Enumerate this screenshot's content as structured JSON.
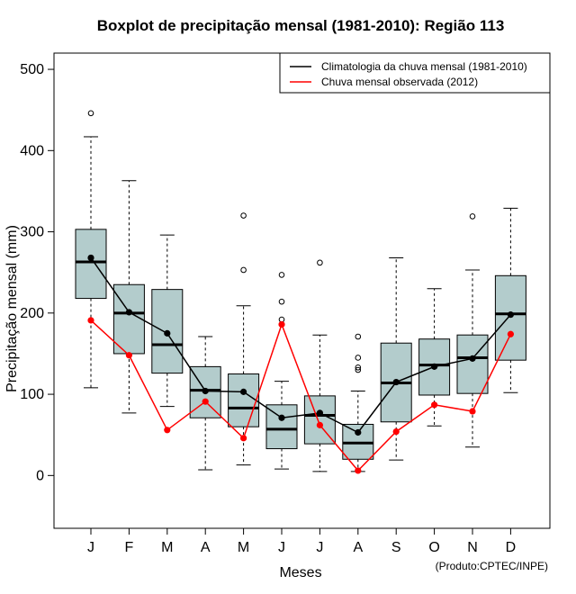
{
  "chart_data": {
    "type": "boxplot",
    "title": "Boxplot de precipitação mensal (1981-2010): Região 113",
    "xlabel": "Meses",
    "ylabel": "Precipitação mensal (mm)",
    "credit": "(Produto:CPTEC/INPE)",
    "ylim": [
      -65,
      520
    ],
    "yticks": [
      0,
      100,
      200,
      300,
      400,
      500
    ],
    "categories": [
      "J",
      "F",
      "M",
      "A",
      "M",
      "J",
      "J",
      "A",
      "S",
      "O",
      "N",
      "D"
    ],
    "boxes": [
      {
        "min": 108,
        "q1": 218,
        "median": 263,
        "q3": 303,
        "max": 417,
        "outliers": [
          446
        ]
      },
      {
        "min": 77,
        "q1": 150,
        "median": 200,
        "q3": 235,
        "max": 363,
        "outliers": []
      },
      {
        "min": 85,
        "q1": 126,
        "median": 161,
        "q3": 229,
        "max": 296,
        "outliers": []
      },
      {
        "min": 7,
        "q1": 71,
        "median": 105,
        "q3": 134,
        "max": 171,
        "outliers": []
      },
      {
        "min": 13,
        "q1": 60,
        "median": 83,
        "q3": 125,
        "max": 209,
        "outliers": [
          253,
          320
        ]
      },
      {
        "min": 8,
        "q1": 33,
        "median": 57,
        "q3": 87,
        "max": 116,
        "outliers": [
          192,
          214,
          247
        ]
      },
      {
        "min": 5,
        "q1": 39,
        "median": 74,
        "q3": 98,
        "max": 173,
        "outliers": [
          262
        ]
      },
      {
        "min": 5,
        "q1": 20,
        "median": 40,
        "q3": 63,
        "max": 104,
        "outliers": [
          130,
          133,
          145,
          171
        ]
      },
      {
        "min": 19,
        "q1": 66,
        "median": 114,
        "q3": 163,
        "max": 268,
        "outliers": []
      },
      {
        "min": 61,
        "q1": 99,
        "median": 136,
        "q3": 168,
        "max": 230,
        "outliers": []
      },
      {
        "min": 35,
        "q1": 101,
        "median": 145,
        "q3": 173,
        "max": 253,
        "outliers": [
          319
        ]
      },
      {
        "min": 102,
        "q1": 142,
        "median": 199,
        "q3": 246,
        "max": 329,
        "outliers": []
      }
    ],
    "series": [
      {
        "name": "Climatologia da chuva mensal (1981-2010)",
        "color": "#000000",
        "values": [
          268,
          201,
          175,
          104,
          103,
          71,
          77,
          53,
          115,
          134,
          144,
          198
        ]
      },
      {
        "name": "Chuva mensal observada (2012)",
        "color": "#ff0000",
        "values": [
          191,
          148,
          56,
          91,
          46,
          186,
          62,
          6,
          54,
          87,
          79,
          174
        ]
      }
    ],
    "legend_position": "top-right",
    "box_color": "#b3cccc"
  }
}
